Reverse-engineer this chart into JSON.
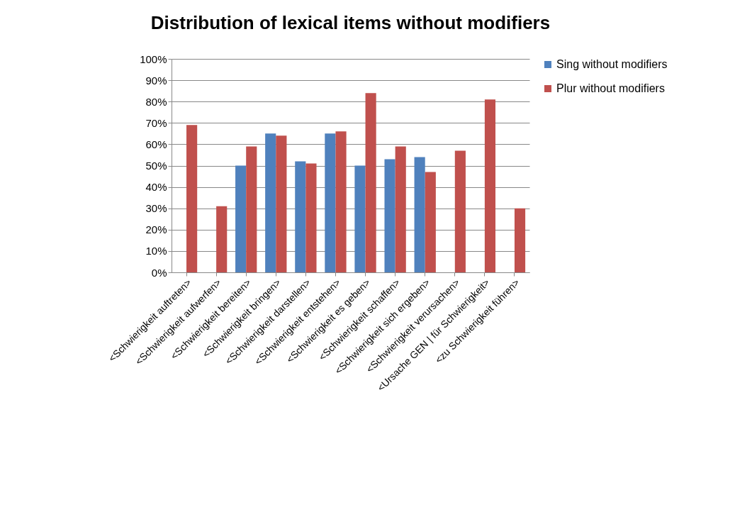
{
  "chart_data": {
    "type": "bar",
    "title": "Distribution of lexical items without modifiers",
    "categories": [
      "<Schwierigkeit auftreten>",
      "<Schwierigkeit aufwerfen>",
      "<Schwierigkeit bereiten>",
      "<Schwierigkeit bringen>",
      "<Schwierigkeit darstellen>",
      "<Schwierigkeit entstehen>",
      "<Schwierigkeit es geben>",
      "<Schwierigkeit schaffen>",
      "<Schwierigkeit sich ergeben>",
      "<Schwierigkeit verursachen>",
      "<Ursache GEN | für Schwierigkeit>",
      "<zu Schwierigkeit führen>"
    ],
    "series": [
      {
        "name": "Sing without modifiers",
        "color": "#4f81bd",
        "values": [
          null,
          null,
          50,
          65,
          52,
          65,
          50,
          53,
          54,
          null,
          null,
          null
        ]
      },
      {
        "name": "Plur without modifiers",
        "color": "#c0504d",
        "values": [
          69,
          31,
          59,
          64,
          51,
          66,
          84,
          59,
          47,
          57,
          81,
          30
        ]
      }
    ],
    "ylim": [
      0,
      100
    ],
    "yticks": [
      {
        "value": 0,
        "label": "0%"
      },
      {
        "value": 10,
        "label": "10%"
      },
      {
        "value": 20,
        "label": "20%"
      },
      {
        "value": 30,
        "label": "30%"
      },
      {
        "value": 40,
        "label": "40%"
      },
      {
        "value": 50,
        "label": "50%"
      },
      {
        "value": 60,
        "label": "60%"
      },
      {
        "value": 70,
        "label": "70%"
      },
      {
        "value": 80,
        "label": "80%"
      },
      {
        "value": 90,
        "label": "90%"
      },
      {
        "value": 100,
        "label": "100%"
      }
    ],
    "grid": "y",
    "legend": "right"
  }
}
